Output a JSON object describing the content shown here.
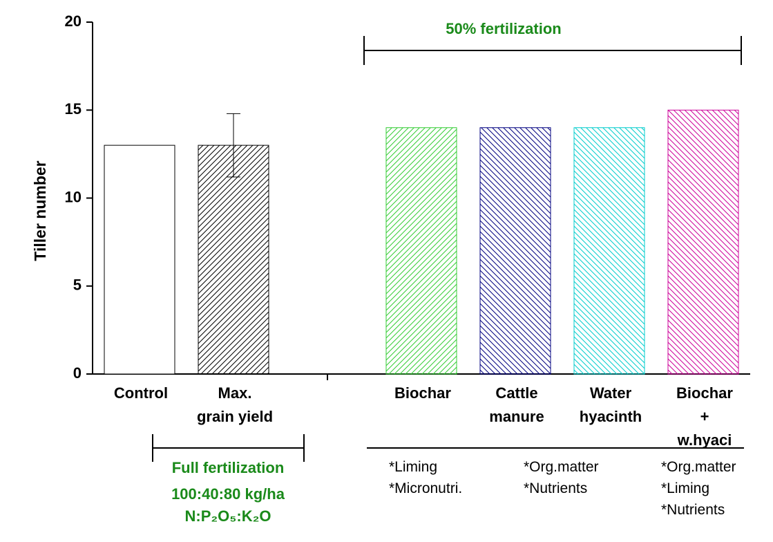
{
  "chart_data": {
    "type": "bar",
    "y_label": "Tiller number",
    "categories": [
      "Control",
      "Max.\ngrain yield",
      null,
      "Biochar",
      "Cattle\nmanure",
      "Water\nhyacinth",
      "Biochar +\nw.hyaci"
    ],
    "values": [
      13,
      13,
      null,
      14,
      14,
      14,
      15
    ],
    "errors": [
      null,
      1.8,
      null,
      null,
      null,
      null,
      null
    ],
    "colors": [
      "#000000",
      "#000000",
      null,
      "#33cc33",
      "#000080",
      "#00cccc",
      "#cc0099"
    ],
    "patterns": [
      "none",
      "/",
      null,
      "/",
      "\\",
      "\\",
      "\\"
    ],
    "ylim": [
      0,
      20
    ],
    "yticks": [
      0,
      5,
      10,
      15,
      20
    ],
    "top_bracket": "50% fertilization",
    "full_fertilization": [
      "Full fertilization",
      "100:40:80 kg/ha",
      "N:P₂O₅:K₂O"
    ],
    "notes": [
      "*Liming\n*Micronutri.",
      "*Org.matter\n*Nutrients",
      "*Org.matter\n*Liming\n*Nutrients"
    ]
  }
}
